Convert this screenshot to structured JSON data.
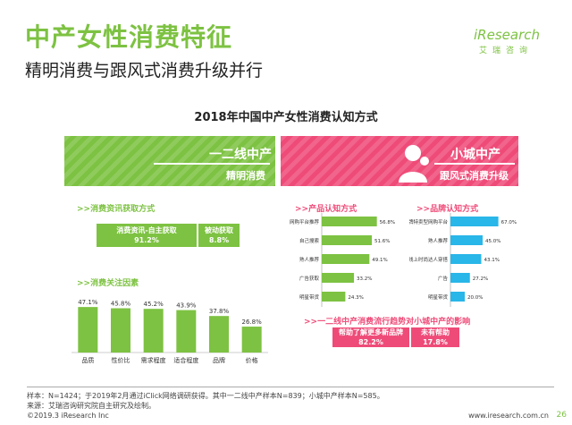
{
  "page": {
    "title": "中产女性消费特征",
    "subtitle": "精明消费与跟风式消费升级并行",
    "logo": "iResearch",
    "logo_cn": "艾瑞咨询",
    "chart_title": "2018年中国中产女性消费认知方式"
  },
  "left_panel": {
    "name": "一二线中产",
    "tag": "精明消费",
    "section1": ">>消费资讯获取方式",
    "section2": ">>消费关注因素"
  },
  "right_panel": {
    "name": "小城中产",
    "tag": "跟风式消费升级",
    "section1": ">>产品认知方式",
    "section2": ">>品牌认知方式",
    "section3": ">>一二线中产消费流行趋势对小城中产的影响"
  },
  "colors": {
    "green": "#7dc242",
    "pink": "#ef4b78",
    "blue": "#29b6e8"
  },
  "chart_data": [
    {
      "type": "bar",
      "title": "消费资讯获取方式",
      "categories": [
        "消费资讯-自主获取",
        "被动获取"
      ],
      "values": [
        91.2,
        8.8
      ],
      "labels": [
        "91.2%",
        "8.8%"
      ]
    },
    {
      "type": "bar",
      "title": "消费关注因素",
      "categories": [
        "品质",
        "性价比",
        "需求程度",
        "适合程度",
        "品牌",
        "价格"
      ],
      "values": [
        47.1,
        45.8,
        45.2,
        43.9,
        37.8,
        26.8
      ],
      "labels": [
        "47.1%",
        "45.8%",
        "45.2%",
        "43.9%",
        "37.8%",
        "26.8%"
      ]
    },
    {
      "type": "bar",
      "orientation": "horizontal",
      "title": "产品认知方式",
      "categories": [
        "网购平台推荐",
        "自己搜索",
        "熟人推荐",
        "广告获取",
        "明星带货"
      ],
      "values": [
        56.8,
        51.6,
        49.1,
        33.2,
        24.3
      ],
      "labels": [
        "56.8%",
        "51.6%",
        "49.1%",
        "33.2%",
        "24.3%"
      ]
    },
    {
      "type": "bar",
      "orientation": "horizontal",
      "title": "品牌认知方式",
      "categories": [
        "品牌特卖型网购平台",
        "熟人推荐",
        "线上时尚达人穿搭",
        "广告",
        "明星带货"
      ],
      "values": [
        67.0,
        45.0,
        43.1,
        27.2,
        20.0
      ],
      "labels": [
        "67.0%",
        "45.0%",
        "43.1%",
        "27.2%",
        "20.0%"
      ]
    },
    {
      "type": "bar",
      "title": "一二线中产消费流行趋势对小城中产的影响",
      "categories": [
        "帮助了解更多新品牌",
        "未有帮助"
      ],
      "values": [
        82.2,
        17.8
      ],
      "labels": [
        "82.2%",
        "17.8%"
      ]
    }
  ],
  "footer": {
    "line1": "样本：N=1424；于2019年2月通过iClick网络调研获得。其中一二线中产样本N=839；小城中产样本N=585。",
    "line2": "来源：艾瑞咨询研究院自主研究及绘制。",
    "copyright": "©2019.3 iResearch Inc",
    "url": "www.iresearch.com.cn",
    "page_number": "26"
  }
}
